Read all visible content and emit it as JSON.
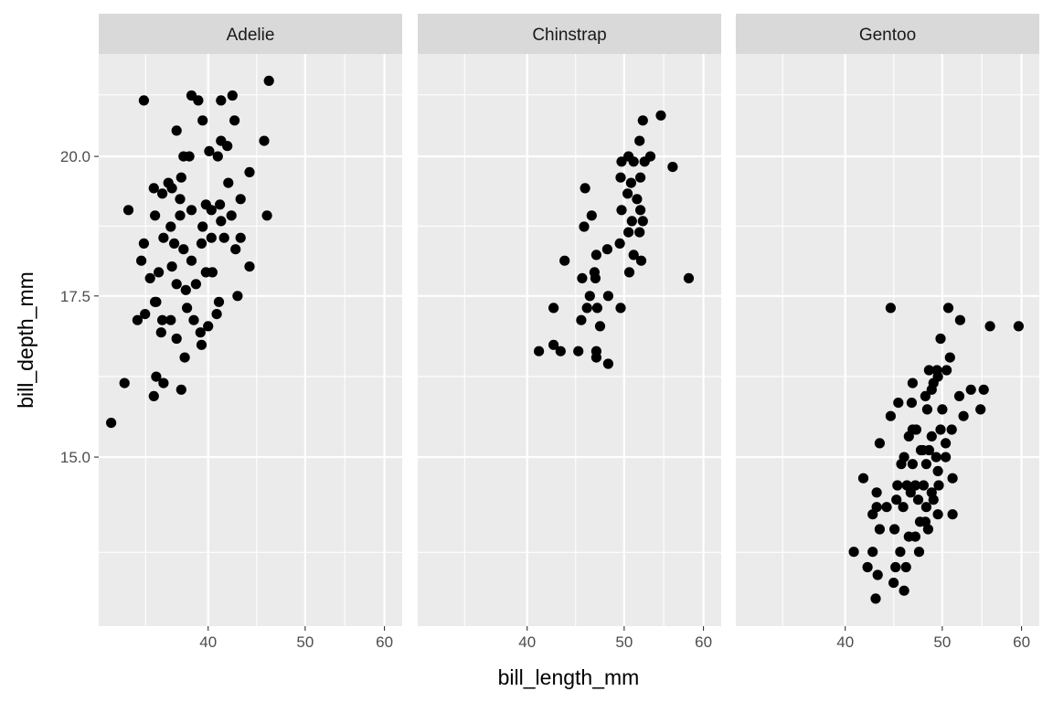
{
  "chart_data": {
    "type": "scatter",
    "facet_by": "species",
    "xlabel": "bill_length_mm",
    "ylabel": "bill_depth_mm",
    "x_scale": "log10",
    "y_scale": "log10",
    "xlim": [
      31.1,
      62.5
    ],
    "ylim": [
      12.76,
      22.06
    ],
    "x_ticks": [
      40,
      50,
      60
    ],
    "x_tick_labels": [
      "40",
      "50",
      "60"
    ],
    "y_ticks": [
      15,
      17.5,
      20
    ],
    "y_tick_labels": [
      "15.0",
      "17.5",
      "20.0"
    ],
    "grid": true,
    "point_color": "#000000",
    "panel_background": "#ebebeb",
    "strip_background": "#d9d9d9",
    "panels": [
      {
        "label": "Adelie",
        "points": [
          [
            34.5,
            21.1
          ],
          [
            38.5,
            21.2
          ],
          [
            39.1,
            21.1
          ],
          [
            42.3,
            21.2
          ],
          [
            41.2,
            21.1
          ],
          [
            46.0,
            21.5
          ],
          [
            39.5,
            20.7
          ],
          [
            42.5,
            20.7
          ],
          [
            37.2,
            20.5
          ],
          [
            41.2,
            20.3
          ],
          [
            45.5,
            20.3
          ],
          [
            41.8,
            20.2
          ],
          [
            40.1,
            20.1
          ],
          [
            37.8,
            20.0
          ],
          [
            38.3,
            20.0
          ],
          [
            40.9,
            20.0
          ],
          [
            44.0,
            19.7
          ],
          [
            37.6,
            19.6
          ],
          [
            41.9,
            19.5
          ],
          [
            36.5,
            19.5
          ],
          [
            35.3,
            19.4
          ],
          [
            36.8,
            19.4
          ],
          [
            36.0,
            19.3
          ],
          [
            37.5,
            19.2
          ],
          [
            33.3,
            19.0
          ],
          [
            39.8,
            19.1
          ],
          [
            41.1,
            19.1
          ],
          [
            43.1,
            19.2
          ],
          [
            45.8,
            18.9
          ],
          [
            35.4,
            18.9
          ],
          [
            37.5,
            18.9
          ],
          [
            38.5,
            19.0
          ],
          [
            40.3,
            19.0
          ],
          [
            41.2,
            18.8
          ],
          [
            42.2,
            18.9
          ],
          [
            39.5,
            18.7
          ],
          [
            36.7,
            18.7
          ],
          [
            36.1,
            18.5
          ],
          [
            34.5,
            18.4
          ],
          [
            37.0,
            18.4
          ],
          [
            39.4,
            18.4
          ],
          [
            40.3,
            18.5
          ],
          [
            41.5,
            18.5
          ],
          [
            43.1,
            18.5
          ],
          [
            42.6,
            18.3
          ],
          [
            37.8,
            18.3
          ],
          [
            34.3,
            18.1
          ],
          [
            35.7,
            17.9
          ],
          [
            36.8,
            18.0
          ],
          [
            38.5,
            18.1
          ],
          [
            39.8,
            17.9
          ],
          [
            40.4,
            17.9
          ],
          [
            44.0,
            18.0
          ],
          [
            35.0,
            17.8
          ],
          [
            37.2,
            17.7
          ],
          [
            38.0,
            17.6
          ],
          [
            38.9,
            17.7
          ],
          [
            41.0,
            17.4
          ],
          [
            42.8,
            17.5
          ],
          [
            35.5,
            17.4
          ],
          [
            34.0,
            17.1
          ],
          [
            34.6,
            17.2
          ],
          [
            36.0,
            17.1
          ],
          [
            36.7,
            17.1
          ],
          [
            38.1,
            17.3
          ],
          [
            38.7,
            17.1
          ],
          [
            40.0,
            17.0
          ],
          [
            40.8,
            17.2
          ],
          [
            35.9,
            16.9
          ],
          [
            37.2,
            16.8
          ],
          [
            39.4,
            16.7
          ],
          [
            37.9,
            16.5
          ],
          [
            35.5,
            16.2
          ],
          [
            36.1,
            16.1
          ],
          [
            33.0,
            16.1
          ],
          [
            35.3,
            15.9
          ],
          [
            37.6,
            16.0
          ],
          [
            32.0,
            15.5
          ],
          [
            39.3,
            16.9
          ],
          [
            35.4,
            17.4
          ]
        ]
      },
      {
        "label": "Chinstrap",
        "points": [
          [
            52.2,
            20.7
          ],
          [
            54.4,
            20.8
          ],
          [
            51.8,
            20.3
          ],
          [
            50.5,
            20.0
          ],
          [
            49.7,
            19.9
          ],
          [
            51.1,
            19.9
          ],
          [
            52.4,
            19.9
          ],
          [
            53.1,
            20.0
          ],
          [
            55.9,
            19.8
          ],
          [
            49.6,
            19.6
          ],
          [
            50.8,
            19.5
          ],
          [
            51.9,
            19.6
          ],
          [
            45.7,
            19.4
          ],
          [
            50.4,
            19.3
          ],
          [
            51.5,
            19.2
          ],
          [
            49.7,
            19.0
          ],
          [
            51.9,
            19.0
          ],
          [
            50.9,
            18.8
          ],
          [
            52.2,
            18.8
          ],
          [
            45.6,
            18.7
          ],
          [
            46.4,
            18.9
          ],
          [
            50.5,
            18.6
          ],
          [
            51.8,
            18.6
          ],
          [
            49.5,
            18.4
          ],
          [
            48.1,
            18.3
          ],
          [
            51.1,
            18.2
          ],
          [
            52.0,
            18.1
          ],
          [
            43.6,
            18.1
          ],
          [
            46.9,
            18.2
          ],
          [
            46.7,
            17.9
          ],
          [
            45.4,
            17.8
          ],
          [
            50.6,
            17.9
          ],
          [
            58.0,
            17.8
          ],
          [
            46.8,
            17.8
          ],
          [
            46.2,
            17.5
          ],
          [
            48.2,
            17.5
          ],
          [
            49.6,
            17.3
          ],
          [
            42.5,
            17.3
          ],
          [
            45.9,
            17.3
          ],
          [
            47.0,
            17.3
          ],
          [
            41.1,
            16.6
          ],
          [
            42.5,
            16.7
          ],
          [
            43.2,
            16.6
          ],
          [
            45.0,
            16.6
          ],
          [
            46.9,
            16.6
          ],
          [
            46.9,
            16.5
          ],
          [
            48.2,
            16.4
          ],
          [
            45.3,
            17.1
          ],
          [
            47.3,
            17.0
          ]
        ]
      },
      {
        "label": "Gentoo",
        "points": [
          [
            44.4,
            17.3
          ],
          [
            50.7,
            17.3
          ],
          [
            52.1,
            17.1
          ],
          [
            55.8,
            17.0
          ],
          [
            59.6,
            17.0
          ],
          [
            49.8,
            16.8
          ],
          [
            50.9,
            16.5
          ],
          [
            48.5,
            16.3
          ],
          [
            49.4,
            16.3
          ],
          [
            50.5,
            16.3
          ],
          [
            46.7,
            16.1
          ],
          [
            49.5,
            16.2
          ],
          [
            53.4,
            16.0
          ],
          [
            54.6,
            15.7
          ],
          [
            55.0,
            16.0
          ],
          [
            52.0,
            15.9
          ],
          [
            45.2,
            15.8
          ],
          [
            46.6,
            15.8
          ],
          [
            48.3,
            15.7
          ],
          [
            50.0,
            15.7
          ],
          [
            52.5,
            15.6
          ],
          [
            44.4,
            15.6
          ],
          [
            46.7,
            15.4
          ],
          [
            49.8,
            15.4
          ],
          [
            50.4,
            15.2
          ],
          [
            47.6,
            15.1
          ],
          [
            48.5,
            15.1
          ],
          [
            49.3,
            15.0
          ],
          [
            45.8,
            15.0
          ],
          [
            50.4,
            15.0
          ],
          [
            43.3,
            15.2
          ],
          [
            41.7,
            14.7
          ],
          [
            43.0,
            14.5
          ],
          [
            45.5,
            14.9
          ],
          [
            45.1,
            14.6
          ],
          [
            46.1,
            14.6
          ],
          [
            47.0,
            14.6
          ],
          [
            47.9,
            14.6
          ],
          [
            48.8,
            14.5
          ],
          [
            49.6,
            14.6
          ],
          [
            46.5,
            14.5
          ],
          [
            45.0,
            14.4
          ],
          [
            47.3,
            14.4
          ],
          [
            48.2,
            14.3
          ],
          [
            43.0,
            14.3
          ],
          [
            44.0,
            14.3
          ],
          [
            45.7,
            14.3
          ],
          [
            42.6,
            14.2
          ],
          [
            49.5,
            14.2
          ],
          [
            51.2,
            14.2
          ],
          [
            44.8,
            14.0
          ],
          [
            47.5,
            14.1
          ],
          [
            48.4,
            14.0
          ],
          [
            43.3,
            14.0
          ],
          [
            46.3,
            13.9
          ],
          [
            47.0,
            13.9
          ],
          [
            45.4,
            13.7
          ],
          [
            47.4,
            13.7
          ],
          [
            40.8,
            13.7
          ],
          [
            42.6,
            13.7
          ],
          [
            42.1,
            13.5
          ],
          [
            44.9,
            13.5
          ],
          [
            46.0,
            13.5
          ],
          [
            43.1,
            13.4
          ],
          [
            44.7,
            13.3
          ],
          [
            45.8,
            13.2
          ],
          [
            42.9,
            13.1
          ],
          [
            48.8,
            16.0
          ],
          [
            48.1,
            15.9
          ],
          [
            49.0,
            16.1
          ],
          [
            47.1,
            15.4
          ],
          [
            48.8,
            15.3
          ],
          [
            46.3,
            15.3
          ],
          [
            47.8,
            15.1
          ],
          [
            48.2,
            14.9
          ],
          [
            49.5,
            14.8
          ],
          [
            51.2,
            14.7
          ],
          [
            49.0,
            14.4
          ],
          [
            48.1,
            14.1
          ],
          [
            51.1,
            15.4
          ],
          [
            46.7,
            14.9
          ]
        ]
      }
    ]
  }
}
